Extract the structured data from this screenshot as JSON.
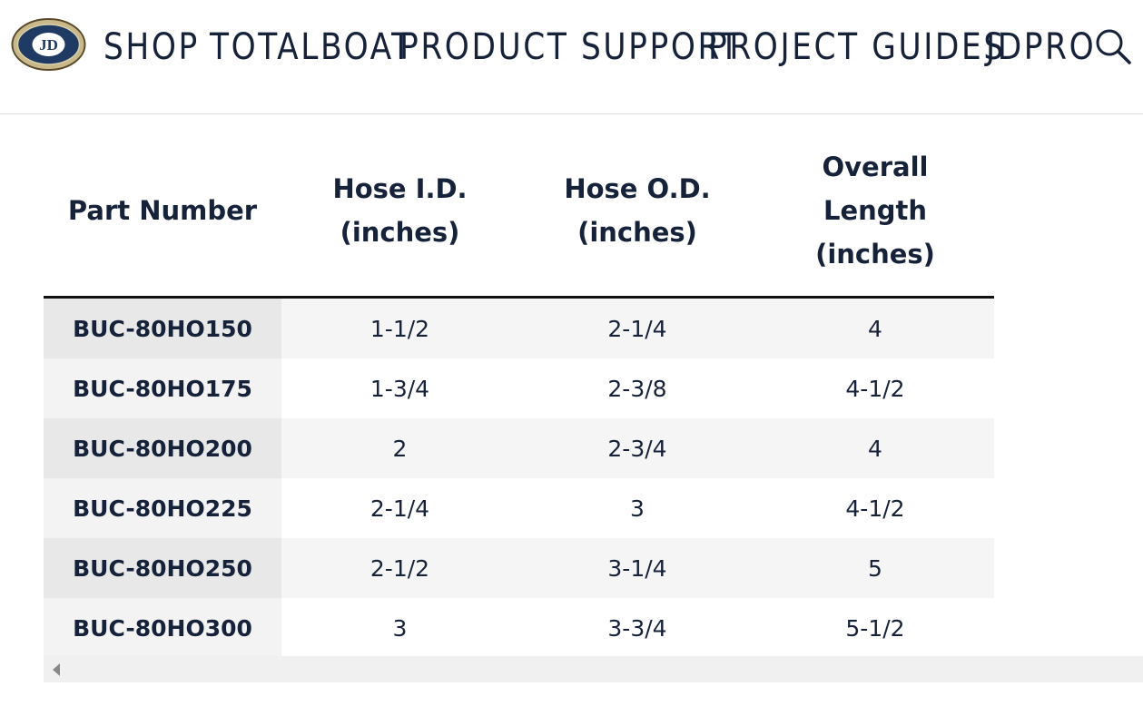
{
  "header": {
    "logo_alt": "Jamestown Distributors JD",
    "nav": [
      "SHOP",
      "TOTALBOAT",
      "PRODUCT SUPPORT",
      "PROJECT GUIDES",
      "JDPRO"
    ],
    "search_icon": "search-icon"
  },
  "table": {
    "columns": [
      "Part Number",
      "Hose I.D. (inches)",
      "Hose O.D. (inches)",
      "Overall Length (inches)"
    ],
    "rows": [
      [
        "BUC-80HO150",
        "1-1/2",
        "2-1/4",
        "4"
      ],
      [
        "BUC-80HO175",
        "1-3/4",
        "2-3/8",
        "4-1/2"
      ],
      [
        "BUC-80HO200",
        "2",
        "2-3/4",
        "4"
      ],
      [
        "BUC-80HO225",
        "2-1/4",
        "3",
        "4-1/2"
      ],
      [
        "BUC-80HO250",
        "2-1/2",
        "3-1/4",
        "5"
      ],
      [
        "BUC-80HO300",
        "3",
        "3-3/4",
        "5-1/2"
      ]
    ]
  },
  "colors": {
    "text": "#16223a",
    "rule": "#111111",
    "stripe": "#f5f5f5"
  }
}
